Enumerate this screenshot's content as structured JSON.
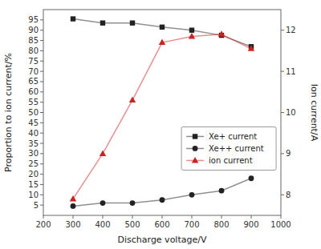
{
  "chart_data": {
    "type": "line",
    "xlabel": "Discharge voltage/V",
    "ylabel": "Proportion to ion current/%",
    "y2label": "Ion current/A",
    "x": [
      300,
      400,
      500,
      600,
      700,
      800,
      900
    ],
    "series": [
      {
        "name": "Xe+ current",
        "color": "#222222",
        "marker": "square",
        "line_style": "solid",
        "values": [
          95.5,
          93.5,
          93.5,
          91.5,
          90.0,
          87.5,
          82.0
        ]
      },
      {
        "name": "Xe++ current",
        "color": "#222222",
        "marker": "circle",
        "line_style": "solid",
        "values": [
          4.5,
          6.0,
          6.0,
          7.5,
          10.0,
          12.0,
          18.0
        ]
      },
      {
        "name": "ion current",
        "color": "#cc2222",
        "marker": "triangle",
        "line_style": "solid",
        "axis": "y2",
        "values": [
          7.9,
          9.0,
          10.3,
          11.7,
          11.85,
          11.9,
          11.55
        ]
      }
    ],
    "xlim": [
      200,
      1000
    ],
    "xticks": [
      200,
      300,
      400,
      500,
      600,
      700,
      800,
      900,
      1000
    ],
    "ylim": [
      0,
      100
    ],
    "yticks": [
      5,
      10,
      15,
      20,
      25,
      30,
      35,
      40,
      45,
      50,
      55,
      60,
      65,
      70,
      75,
      80,
      85,
      90,
      95
    ],
    "y2lim": [
      7.5,
      12.5
    ],
    "y2ticks": [
      8,
      9,
      10,
      11,
      12
    ],
    "grid": false,
    "legend": "lower right"
  }
}
